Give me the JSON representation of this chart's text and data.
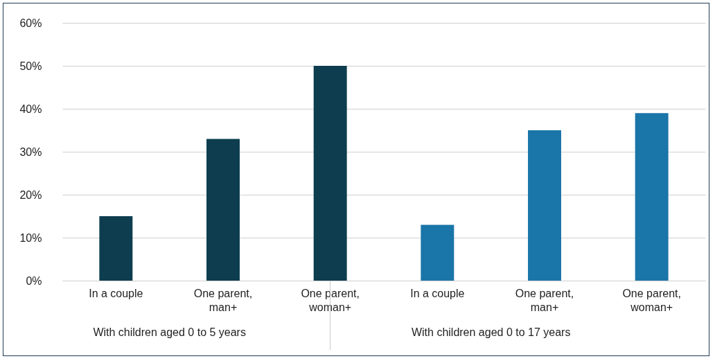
{
  "chart_data": {
    "type": "bar",
    "categories": [
      "In a couple",
      "One parent, man+",
      "One parent, woman+",
      "In a couple",
      "One parent, man+",
      "One parent, woman+"
    ],
    "series": [
      {
        "color": "#0d3d4f",
        "values": [
          15,
          33,
          50,
          null,
          null,
          null
        ]
      },
      {
        "color": "#1a75a8",
        "values": [
          null,
          null,
          null,
          13,
          35,
          39
        ]
      }
    ],
    "ylim": [
      0,
      60
    ],
    "yticks": [
      {
        "value": 0,
        "label": "0%"
      },
      {
        "value": 10,
        "label": "10%"
      },
      {
        "value": 20,
        "label": "20%"
      },
      {
        "value": 30,
        "label": "30%"
      },
      {
        "value": 40,
        "label": "40%"
      },
      {
        "value": 50,
        "label": "50%"
      },
      {
        "value": 60,
        "label": "60%"
      }
    ],
    "grid": "y",
    "legend": false,
    "annotations": [
      "With children aged 0 to 5 years",
      "With children aged 0 to 17 years"
    ]
  }
}
